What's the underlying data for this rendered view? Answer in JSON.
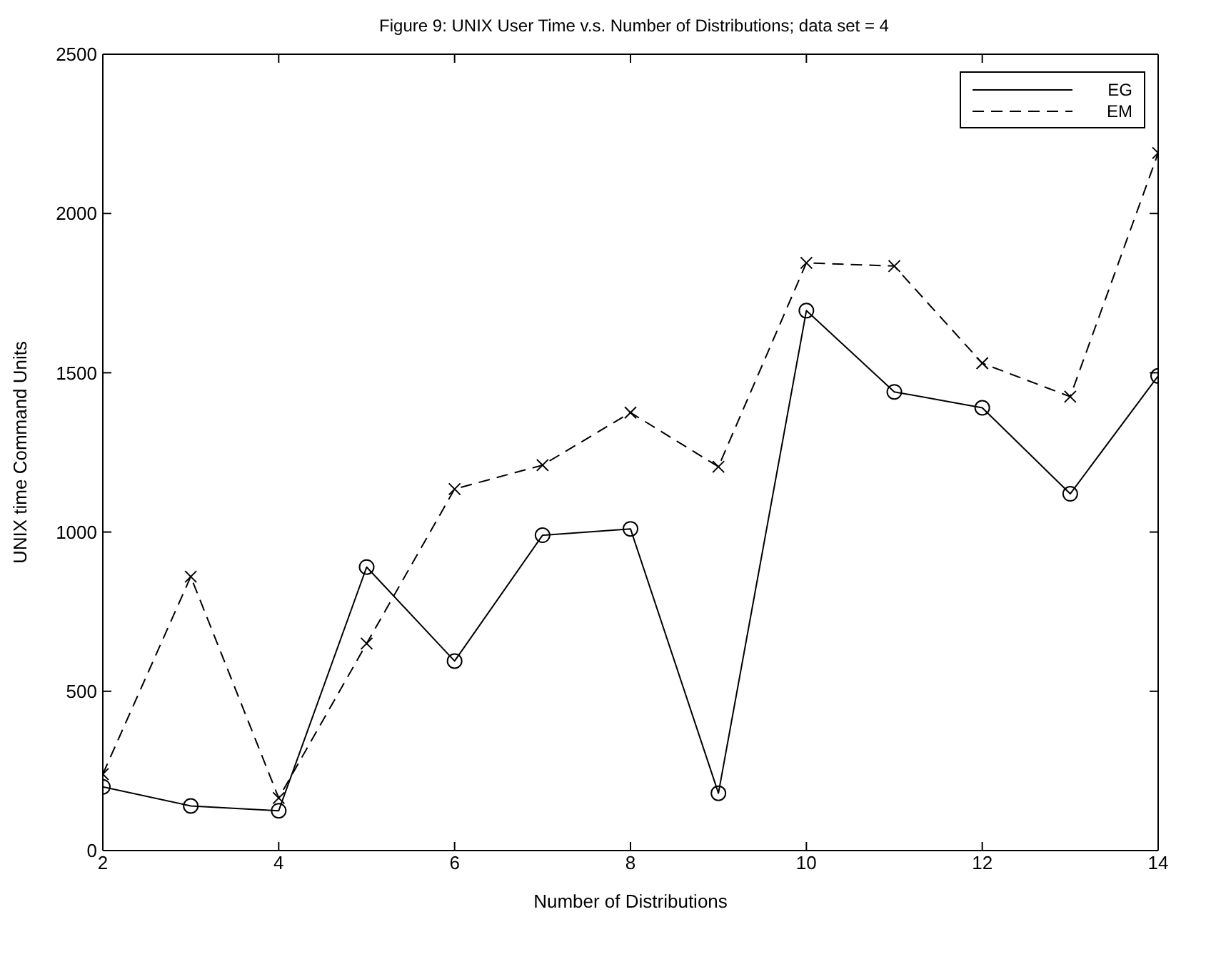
{
  "chart_data": {
    "type": "line",
    "title": "Figure 9: UNIX User Time v.s. Number of Distributions; data set = 4",
    "xlabel": "Number of Distributions",
    "ylabel": "UNIX time Command Units",
    "x": [
      2,
      3,
      4,
      5,
      6,
      7,
      8,
      9,
      10,
      11,
      12,
      13,
      14
    ],
    "series": [
      {
        "name": "EG",
        "color": "#000000",
        "marker": "circle",
        "line_style": "solid",
        "values": [
          200,
          140,
          125,
          890,
          595,
          990,
          1010,
          180,
          1695,
          1440,
          1390,
          1120,
          1490
        ]
      },
      {
        "name": "EM",
        "color": "#000000",
        "marker": "cross",
        "line_style": "dashed",
        "values": [
          240,
          860,
          165,
          650,
          1135,
          1210,
          1375,
          1205,
          1845,
          1835,
          1530,
          1425,
          2190
        ]
      }
    ],
    "xlim": [
      2,
      14
    ],
    "xticks": [
      2,
      4,
      6,
      8,
      10,
      12,
      14
    ],
    "ylim": [
      0,
      2500
    ],
    "yticks": [
      0,
      500,
      1000,
      1500,
      2000,
      2500
    ],
    "grid": false,
    "legend": "top right"
  }
}
